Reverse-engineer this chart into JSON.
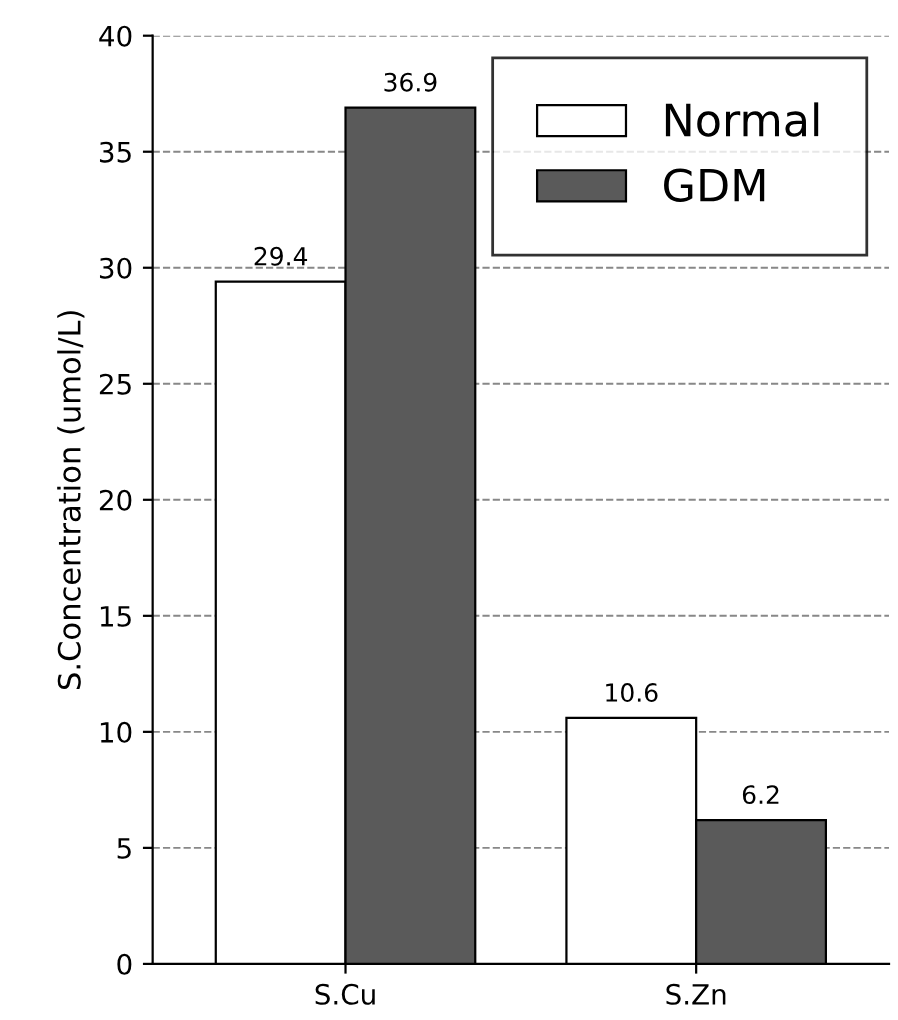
{
  "chart_data": {
    "type": "bar",
    "ylabel": "S.Concentration (umol/L)",
    "categories": [
      "S.Cu",
      "S.Zn"
    ],
    "series": [
      {
        "name": "Normal",
        "color": "#ffffff",
        "values": [
          29.4,
          10.6
        ]
      },
      {
        "name": "GDM",
        "color": "#5a5a5a",
        "values": [
          36.9,
          6.2
        ]
      }
    ],
    "ylim": [
      0,
      40
    ],
    "yticks": [
      0,
      5,
      10,
      15,
      20,
      25,
      30,
      35,
      40
    ],
    "grid": "y",
    "legend": "top right",
    "data_labels": true
  }
}
